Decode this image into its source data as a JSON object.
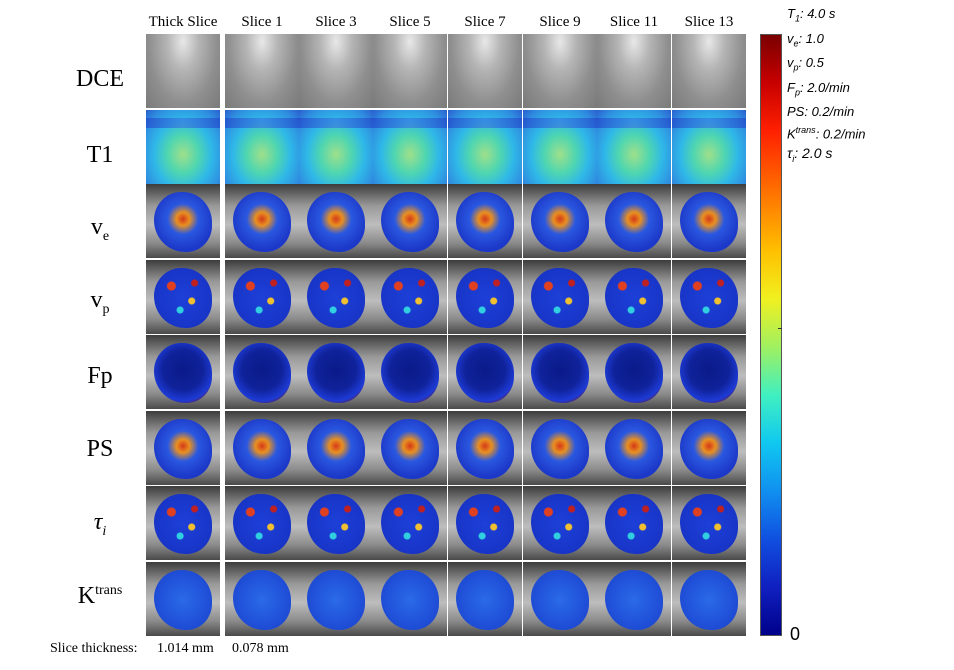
{
  "column_headers": [
    "Thick Slice",
    "Slice 1",
    "Slice 3",
    "Slice 5",
    "Slice 7",
    "Slice 9",
    "Slice 11",
    "Slice 13"
  ],
  "row_labels": {
    "dce": "DCE",
    "t1": "T1",
    "ve_base": "v",
    "ve_sub": "e",
    "vp_base": "v",
    "vp_sub": "p",
    "fp": "Fp",
    "ps": "PS",
    "tau_base": "τ",
    "tau_sub": "i",
    "ktrans_base": "K",
    "ktrans_sup": "trans"
  },
  "parameters": {
    "t1_name": "T",
    "t1_sub": "1",
    "t1_value": ": 4.0 s",
    "ve_name": "v",
    "ve_sub": "e",
    "ve_value": ": 1.0",
    "vp_name": "v",
    "vp_sub": "p",
    "vp_value": ": 0.5",
    "fp_name": "F",
    "fp_sub": "p",
    "fp_value": ": 2.0/min",
    "ps_text": "PS: 0.2/min",
    "kt_name": "K",
    "kt_sup": "trans",
    "kt_value": ": 0.2/min",
    "tau_name": "τ",
    "tau_sub": "i",
    "tau_value": ": 2.0 s"
  },
  "colorbar": {
    "min_label": "0"
  },
  "footer": {
    "label": "Slice thickness:",
    "thick": "1.014 mm",
    "thin": "0.078 mm"
  }
}
